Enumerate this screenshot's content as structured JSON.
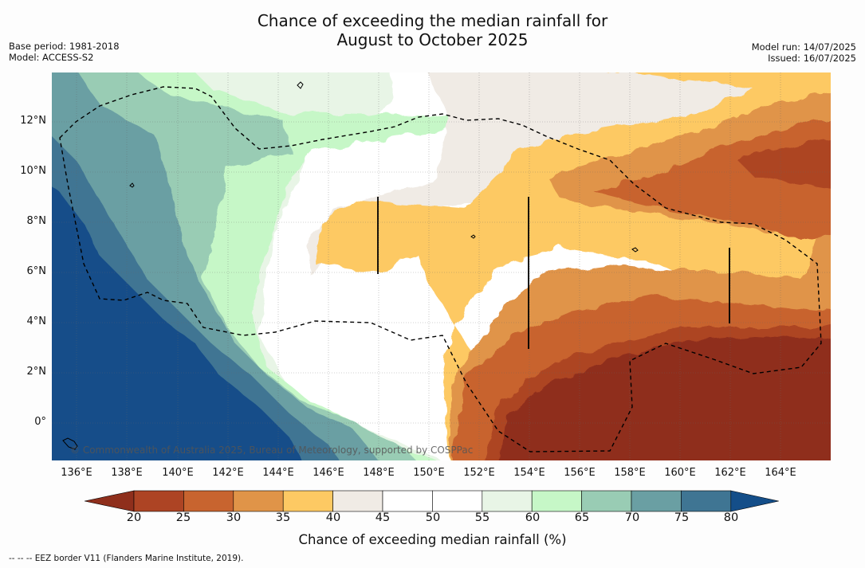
{
  "title": {
    "line1": "Chance of exceeding the median rainfall for",
    "line2": "August to October 2025"
  },
  "meta_left": {
    "base_period": "Base period: 1981-2018",
    "model": "Model: ACCESS-S2"
  },
  "meta_right": {
    "model_run": "Model run: 14/07/2025",
    "issued": "Issued: 16/07/2025"
  },
  "map": {
    "lat_labels": [
      "12°N",
      "10°N",
      "8°N",
      "6°N",
      "4°N",
      "2°N",
      "0°"
    ],
    "lon_labels": [
      "136°E",
      "138°E",
      "140°E",
      "142°E",
      "144°E",
      "146°E",
      "148°E",
      "150°E",
      "152°E",
      "154°E",
      "156°E",
      "158°E",
      "160°E",
      "162°E",
      "164°E"
    ],
    "copyright": "© Commonwealth of Australia 2025, Bureau of Meteorology, supported by COSPPac",
    "legend_categories": [
      {
        "range": "<20",
        "color": "#8f2f1c"
      },
      {
        "range": "20-25",
        "color": "#ad4424"
      },
      {
        "range": "25-30",
        "color": "#c8642f"
      },
      {
        "range": "30-35",
        "color": "#e09448"
      },
      {
        "range": "35-40",
        "color": "#fdc963"
      },
      {
        "range": "40-45",
        "color": "#f0ebe5"
      },
      {
        "range": "45-50",
        "color": "#ffffff"
      },
      {
        "range": "50-55",
        "color": "#ffffff"
      },
      {
        "range": "55-60",
        "color": "#e8f5e6"
      },
      {
        "range": "60-65",
        "color": "#c6f7c7"
      },
      {
        "range": "65-70",
        "color": "#99ccb4"
      },
      {
        "range": "70-75",
        "color": "#6a9fa3"
      },
      {
        "range": "75-80",
        "color": "#3f7593"
      },
      {
        "range": ">80",
        "color": "#144e89"
      }
    ]
  },
  "colorbar": {
    "ticks": [
      "20",
      "25",
      "30",
      "35",
      "40",
      "45",
      "50",
      "55",
      "60",
      "65",
      "70",
      "75",
      "80"
    ],
    "title": "Chance of exceeding median rainfall (%)"
  },
  "footer": "-- -- -- EEZ border V11 (Flanders Marine Institute, 2019)."
}
